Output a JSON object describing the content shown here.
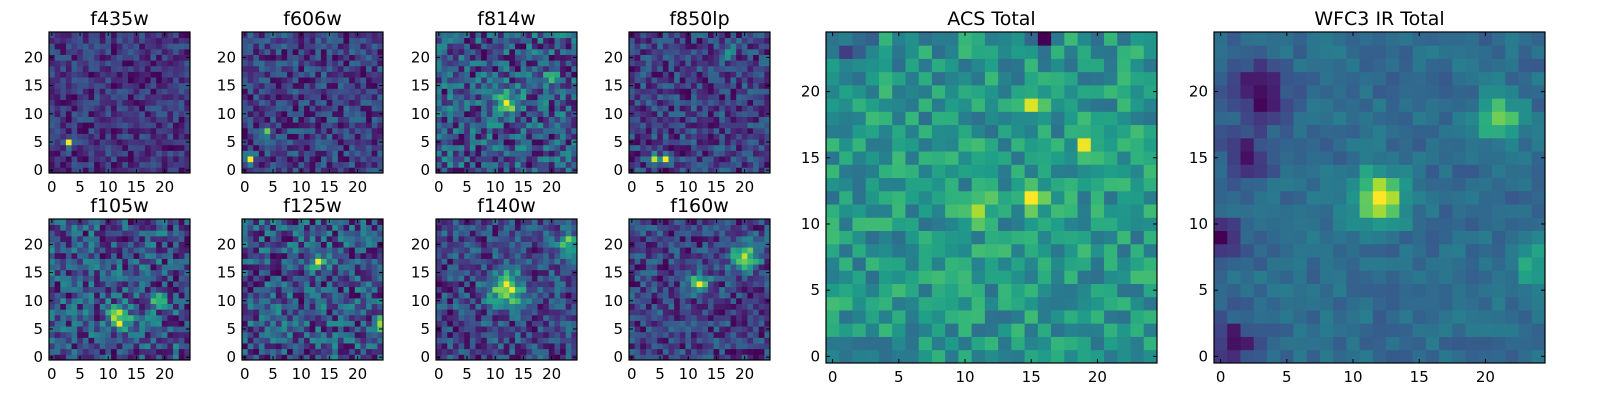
{
  "chart_data": [
    {
      "type": "heatmap",
      "title": "f435w",
      "x_ticks": [
        "0",
        "5",
        "10",
        "15",
        "20"
      ],
      "y_ticks": [
        "0",
        "5",
        "10",
        "15",
        "20"
      ],
      "xlim": [
        -0.5,
        24.5
      ],
      "ylim": [
        -0.5,
        24.5
      ],
      "grid_size": [
        25,
        25
      ],
      "colormap": "viridis",
      "noise_level": 0.09,
      "blobs": [
        {
          "x": 3,
          "y": 5,
          "amplitude": 0.42,
          "sigma": 0.6
        }
      ],
      "seed": 11
    },
    {
      "type": "heatmap",
      "title": "f606w",
      "x_ticks": [
        "0",
        "5",
        "10",
        "15",
        "20"
      ],
      "y_ticks": [
        "0",
        "5",
        "10",
        "15",
        "20"
      ],
      "xlim": [
        -0.5,
        24.5
      ],
      "ylim": [
        -0.5,
        24.5
      ],
      "grid_size": [
        25,
        25
      ],
      "colormap": "viridis",
      "noise_level": 0.12,
      "blobs": [
        {
          "x": 1,
          "y": 2,
          "amplitude": 0.4,
          "sigma": 0.6
        },
        {
          "x": 4,
          "y": 7,
          "amplitude": 0.3,
          "sigma": 0.7
        }
      ],
      "seed": 23
    },
    {
      "type": "heatmap",
      "title": "f814w",
      "x_ticks": [
        "0",
        "5",
        "10",
        "15",
        "20"
      ],
      "y_ticks": [
        "0",
        "5",
        "10",
        "15",
        "20"
      ],
      "xlim": [
        -0.5,
        24.5
      ],
      "ylim": [
        -0.5,
        24.5
      ],
      "grid_size": [
        25,
        25
      ],
      "colormap": "viridis",
      "noise_level": 0.16,
      "blobs": [
        {
          "x": 12,
          "y": 12,
          "amplitude": 0.3,
          "sigma": 1.6
        },
        {
          "x": 20,
          "y": 17,
          "amplitude": 0.35,
          "sigma": 0.7
        }
      ],
      "seed": 37
    },
    {
      "type": "heatmap",
      "title": "f850lp",
      "x_ticks": [
        "0",
        "5",
        "10",
        "15",
        "20"
      ],
      "y_ticks": [
        "0",
        "5",
        "10",
        "15",
        "20"
      ],
      "xlim": [
        -0.5,
        24.5
      ],
      "ylim": [
        -0.5,
        24.5
      ],
      "grid_size": [
        25,
        25
      ],
      "colormap": "viridis",
      "noise_level": 0.12,
      "blobs": [
        {
          "x": 4,
          "y": 2,
          "amplitude": 0.45,
          "sigma": 0.6
        },
        {
          "x": 6,
          "y": 2,
          "amplitude": 0.4,
          "sigma": 0.6
        },
        {
          "x": 17,
          "y": 21,
          "amplitude": 0.3,
          "sigma": 0.8
        }
      ],
      "seed": 41
    },
    {
      "type": "heatmap",
      "title": "f105w",
      "x_ticks": [
        "0",
        "5",
        "10",
        "15",
        "20"
      ],
      "y_ticks": [
        "0",
        "5",
        "10",
        "15",
        "20"
      ],
      "xlim": [
        -0.5,
        24.5
      ],
      "ylim": [
        -0.5,
        24.5
      ],
      "grid_size": [
        25,
        25
      ],
      "colormap": "viridis",
      "noise_level": 0.14,
      "blobs": [
        {
          "x": 12,
          "y": 7,
          "amplitude": 0.35,
          "sigma": 1.4
        },
        {
          "x": 19,
          "y": 10,
          "amplitude": 0.25,
          "sigma": 1.0
        }
      ],
      "seed": 53
    },
    {
      "type": "heatmap",
      "title": "f125w",
      "x_ticks": [
        "0",
        "5",
        "10",
        "15",
        "20"
      ],
      "y_ticks": [
        "0",
        "5",
        "10",
        "15",
        "20"
      ],
      "xlim": [
        -0.5,
        24.5
      ],
      "ylim": [
        -0.5,
        24.5
      ],
      "grid_size": [
        25,
        25
      ],
      "colormap": "viridis",
      "noise_level": 0.16,
      "blobs": [
        {
          "x": 13,
          "y": 17,
          "amplitude": 0.4,
          "sigma": 0.9
        },
        {
          "x": 24,
          "y": 6,
          "amplitude": 0.35,
          "sigma": 0.9
        }
      ],
      "seed": 67
    },
    {
      "type": "heatmap",
      "title": "f140w",
      "x_ticks": [
        "0",
        "5",
        "10",
        "15",
        "20"
      ],
      "y_ticks": [
        "0",
        "5",
        "10",
        "15",
        "20"
      ],
      "xlim": [
        -0.5,
        24.5
      ],
      "ylim": [
        -0.5,
        24.5
      ],
      "grid_size": [
        25,
        25
      ],
      "colormap": "viridis",
      "noise_level": 0.15,
      "blobs": [
        {
          "x": 12,
          "y": 12,
          "amplitude": 0.45,
          "sigma": 2.2
        },
        {
          "x": 23,
          "y": 20,
          "amplitude": 0.4,
          "sigma": 1.4
        }
      ],
      "seed": 79
    },
    {
      "type": "heatmap",
      "title": "f160w",
      "x_ticks": [
        "0",
        "5",
        "10",
        "15",
        "20"
      ],
      "y_ticks": [
        "0",
        "5",
        "10",
        "15",
        "20"
      ],
      "xlim": [
        -0.5,
        24.5
      ],
      "ylim": [
        -0.5,
        24.5
      ],
      "grid_size": [
        25,
        25
      ],
      "colormap": "viridis",
      "noise_level": 0.14,
      "blobs": [
        {
          "x": 12,
          "y": 13,
          "amplitude": 0.45,
          "sigma": 1.3
        },
        {
          "x": 20,
          "y": 18,
          "amplitude": 0.4,
          "sigma": 1.8
        }
      ],
      "seed": 83
    },
    {
      "type": "heatmap",
      "title": "ACS Total",
      "x_ticks": [
        "0",
        "5",
        "10",
        "15",
        "20"
      ],
      "y_ticks": [
        "0",
        "5",
        "10",
        "15",
        "20"
      ],
      "xlim": [
        -0.5,
        24.5
      ],
      "ylim": [
        -0.5,
        24.5
      ],
      "grid_size": [
        25,
        25
      ],
      "colormap": "viridis",
      "noise_level": 0.13,
      "blobs": [
        {
          "x": 15,
          "y": 12,
          "amplitude": 0.4,
          "sigma": 0.6
        },
        {
          "x": 11,
          "y": 11,
          "amplitude": 0.3,
          "sigma": 0.8
        },
        {
          "x": 15,
          "y": 19,
          "amplitude": 0.3,
          "sigma": 0.6
        },
        {
          "x": 19,
          "y": 16,
          "amplitude": 0.25,
          "sigma": 0.7
        }
      ],
      "dark_spots": [
        {
          "x": 2,
          "y": 23,
          "amplitude": 0.3,
          "sigma": 0.9
        },
        {
          "x": 16,
          "y": 24,
          "amplitude": 0.3,
          "sigma": 0.6
        }
      ],
      "seed": 97
    },
    {
      "type": "heatmap",
      "title": "WFC3 IR Total",
      "x_ticks": [
        "0",
        "5",
        "10",
        "15",
        "20"
      ],
      "y_ticks": [
        "0",
        "5",
        "10",
        "15",
        "20"
      ],
      "xlim": [
        -0.5,
        24.5
      ],
      "ylim": [
        -0.5,
        24.5
      ],
      "grid_size": [
        25,
        25
      ],
      "colormap": "viridis",
      "noise_level": 0.06,
      "blobs": [
        {
          "x": 12,
          "y": 12,
          "amplitude": 0.5,
          "sigma": 1.4
        },
        {
          "x": 21,
          "y": 18,
          "amplitude": 0.35,
          "sigma": 1.2
        },
        {
          "x": 24,
          "y": 7,
          "amplitude": 0.2,
          "sigma": 1.5
        }
      ],
      "dark_spots": [
        {
          "x": 3,
          "y": 20,
          "amplitude": 0.3,
          "sigma": 1.4
        },
        {
          "x": 2,
          "y": 15,
          "amplitude": 0.25,
          "sigma": 1.2
        },
        {
          "x": 1,
          "y": 1,
          "amplitude": 0.25,
          "sigma": 1.2
        },
        {
          "x": 0,
          "y": 9,
          "amplitude": 0.25,
          "sigma": 1.0
        }
      ],
      "seed": 101
    }
  ]
}
